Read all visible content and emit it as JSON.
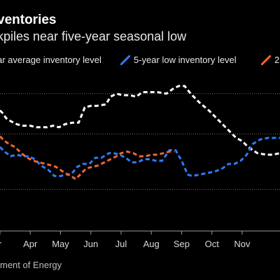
{
  "header": {
    "title": "ventories",
    "subtitle": "kpiles near five-year seasonal low"
  },
  "legend": [
    {
      "label": "ar average inventory level",
      "color": "#ffffff"
    },
    {
      "label": "5-year low inventory level",
      "color": "#2f7bf5"
    },
    {
      "label": "2",
      "color": "#f26430"
    }
  ],
  "source": "ment of Energy",
  "chart_data": {
    "type": "line",
    "x_ticks": [
      "r",
      "Apr",
      "May",
      "Jun",
      "Jul",
      "Aug",
      "Sep",
      "Oct",
      "Nov"
    ],
    "x_range": [
      3.0,
      12.25
    ],
    "ylim": [
      0,
      100
    ],
    "gridlines": [
      27.3,
      63.6,
      90
    ],
    "series": [
      {
        "name": "ar average inventory level",
        "color": "#ffffff",
        "dash": "6,4",
        "points": [
          [
            3.0,
            79
          ],
          [
            3.1,
            77
          ],
          [
            3.2,
            74
          ],
          [
            3.35,
            72
          ],
          [
            3.55,
            70
          ],
          [
            3.75,
            69
          ],
          [
            4.0,
            69
          ],
          [
            4.2,
            68
          ],
          [
            4.35,
            68
          ],
          [
            4.55,
            68
          ],
          [
            4.75,
            69
          ],
          [
            4.95,
            68
          ],
          [
            5.15,
            70
          ],
          [
            5.4,
            71
          ],
          [
            5.6,
            71
          ],
          [
            5.8,
            81
          ],
          [
            6.0,
            82
          ],
          [
            6.2,
            82
          ],
          [
            6.5,
            83
          ],
          [
            6.65,
            88
          ],
          [
            6.85,
            90
          ],
          [
            7.05,
            89
          ],
          [
            7.3,
            89
          ],
          [
            7.5,
            88
          ],
          [
            7.7,
            91
          ],
          [
            8.0,
            91
          ],
          [
            8.2,
            91
          ],
          [
            8.5,
            90
          ],
          [
            8.7,
            93
          ],
          [
            8.9,
            95
          ],
          [
            9.1,
            95
          ],
          [
            9.3,
            90
          ],
          [
            9.6,
            84
          ],
          [
            9.9,
            79
          ],
          [
            10.2,
            73
          ],
          [
            10.5,
            67
          ],
          [
            10.8,
            61
          ],
          [
            11.0,
            59
          ],
          [
            11.2,
            55
          ],
          [
            11.5,
            51
          ],
          [
            11.8,
            50
          ],
          [
            12.0,
            50
          ],
          [
            12.25,
            51
          ]
        ]
      },
      {
        "name": "5-year low inventory level",
        "color": "#2f7bf5",
        "dash": "6,4",
        "points": [
          [
            3.0,
            55
          ],
          [
            3.15,
            52
          ],
          [
            3.35,
            49
          ],
          [
            3.55,
            50
          ],
          [
            3.75,
            49
          ],
          [
            3.95,
            49
          ],
          [
            4.15,
            47
          ],
          [
            4.35,
            43
          ],
          [
            4.6,
            40
          ],
          [
            4.8,
            36
          ],
          [
            5.0,
            36
          ],
          [
            5.2,
            37
          ],
          [
            5.35,
            37
          ],
          [
            5.55,
            42
          ],
          [
            5.75,
            44
          ],
          [
            5.95,
            44
          ],
          [
            6.15,
            48
          ],
          [
            6.35,
            48
          ],
          [
            6.6,
            51
          ],
          [
            6.75,
            51
          ],
          [
            6.95,
            50
          ],
          [
            7.15,
            48
          ],
          [
            7.35,
            45
          ],
          [
            7.55,
            45
          ],
          [
            7.75,
            47
          ],
          [
            7.95,
            47
          ],
          [
            8.15,
            46
          ],
          [
            8.35,
            46
          ],
          [
            8.6,
            53
          ],
          [
            8.8,
            53
          ],
          [
            9.0,
            46
          ],
          [
            9.2,
            37
          ],
          [
            9.35,
            36
          ],
          [
            9.6,
            37
          ],
          [
            9.85,
            38
          ],
          [
            10.1,
            39
          ],
          [
            10.35,
            41
          ],
          [
            10.55,
            44
          ],
          [
            10.75,
            44
          ],
          [
            10.95,
            46
          ],
          [
            11.15,
            50
          ],
          [
            11.35,
            57
          ],
          [
            11.6,
            60
          ],
          [
            11.85,
            61
          ],
          [
            12.25,
            61
          ]
        ]
      },
      {
        "name": "2",
        "color": "#f26430",
        "dash": "6,4",
        "points": [
          [
            3.0,
            62
          ],
          [
            3.15,
            59
          ],
          [
            3.3,
            57
          ],
          [
            3.5,
            55
          ],
          [
            3.7,
            51
          ],
          [
            3.9,
            48
          ],
          [
            4.1,
            46
          ],
          [
            4.3,
            45
          ],
          [
            4.5,
            44
          ],
          [
            4.7,
            43
          ],
          [
            4.85,
            42
          ],
          [
            5.0,
            40
          ],
          [
            5.15,
            38
          ],
          [
            5.35,
            36
          ],
          [
            5.5,
            34
          ],
          [
            5.65,
            37
          ],
          [
            5.85,
            41
          ],
          [
            6.05,
            42
          ],
          [
            6.25,
            43
          ],
          [
            6.45,
            45
          ],
          [
            6.65,
            47
          ],
          [
            6.85,
            49
          ],
          [
            7.0,
            51
          ],
          [
            7.2,
            52
          ],
          [
            7.4,
            51
          ],
          [
            7.6,
            49
          ],
          [
            7.8,
            49
          ],
          [
            8.0,
            50
          ],
          [
            8.2,
            50
          ],
          [
            8.4,
            51
          ],
          [
            8.6,
            52
          ],
          [
            8.75,
            52
          ]
        ]
      }
    ]
  }
}
